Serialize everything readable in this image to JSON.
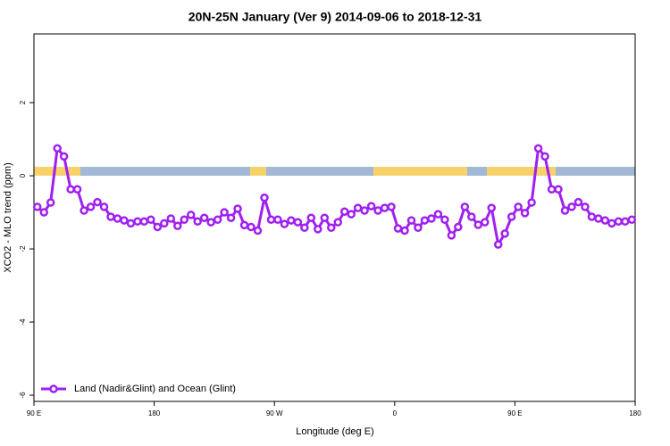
{
  "chart_data": {
    "type": "line",
    "title": "20N-25N January (Ver 9)   2014-09-06 to 2018-12-31",
    "xlabel": "Longitude (deg E)",
    "ylabel": "XCO2 - MLO trend (ppm)",
    "xlim": [
      90,
      540
    ],
    "xticks": [
      {
        "value": 90,
        "label": "90 E"
      },
      180,
      {
        "value": 270,
        "label": "90 W"
      },
      {
        "value": 360,
        "label": "0"
      },
      {
        "value": 450,
        "label": "90 E"
      },
      {
        "value": 540,
        "label": "180"
      }
    ],
    "ylim": [
      -6.17,
      3.88
    ],
    "yticks": [
      -6,
      -4,
      -2,
      0,
      2
    ],
    "legend": "bottom-left",
    "series": [
      {
        "name": "Land (Nadir&Glint) and Ocean (Glint)",
        "color": "#a020f0",
        "x": [
          92.5,
          97.5,
          102.5,
          107.5,
          112.5,
          117.5,
          122.5,
          127.5,
          132.5,
          137.5,
          142.5,
          147.5,
          152.5,
          157.5,
          162.5,
          167.5,
          172.5,
          177.5,
          182.5,
          187.5,
          192.5,
          197.5,
          202.5,
          207.5,
          212.5,
          217.5,
          222.5,
          227.5,
          232.5,
          237.5,
          242.5,
          247.5,
          252.5,
          257.5,
          262.5,
          267.5,
          272.5,
          277.5,
          282.5,
          287.5,
          292.5,
          297.5,
          302.5,
          307.5,
          312.5,
          317.5,
          322.5,
          327.5,
          332.5,
          337.5,
          342.5,
          347.5,
          352.5,
          357.5,
          362.5,
          367.5,
          372.5,
          377.5,
          382.5,
          387.5,
          392.5,
          397.5,
          402.5,
          407.5,
          412.5,
          417.5,
          422.5,
          427.5,
          432.5,
          437.5,
          442.5,
          447.5,
          452.5,
          457.5,
          462.5,
          467.5,
          472.5,
          477.5,
          482.5,
          487.5,
          492.5,
          497.5,
          502.5,
          507.5,
          512.5,
          517.5,
          522.5,
          527.5,
          532.5,
          537.5
        ],
        "values": [
          -0.85,
          -1.0,
          -0.73,
          0.75,
          0.53,
          -0.37,
          -0.37,
          -0.95,
          -0.85,
          -0.72,
          -0.85,
          -1.12,
          -1.17,
          -1.22,
          -1.3,
          -1.25,
          -1.25,
          -1.2,
          -1.4,
          -1.3,
          -1.17,
          -1.37,
          -1.2,
          -1.07,
          -1.25,
          -1.15,
          -1.27,
          -1.2,
          -1.0,
          -1.15,
          -0.9,
          -1.35,
          -1.4,
          -1.5,
          -0.6,
          -1.2,
          -1.2,
          -1.32,
          -1.22,
          -1.27,
          -1.42,
          -1.15,
          -1.46,
          -1.15,
          -1.42,
          -1.27,
          -0.98,
          -1.05,
          -0.88,
          -0.95,
          -0.83,
          -0.95,
          -0.88,
          -0.85,
          -1.44,
          -1.5,
          -1.22,
          -1.42,
          -1.22,
          -1.17,
          -1.05,
          -1.2,
          -1.63,
          -1.4,
          -0.85,
          -1.12,
          -1.34,
          -1.27,
          -0.88,
          -1.88,
          -1.58,
          -1.12,
          -0.85,
          -1.02,
          -0.73,
          0.75,
          0.53,
          -0.37,
          -0.37,
          -0.95,
          -0.85,
          -0.72,
          -0.85,
          -1.12,
          -1.17,
          -1.22,
          -1.3,
          -1.25,
          -1.25,
          -1.2
        ]
      }
    ]
  }
}
